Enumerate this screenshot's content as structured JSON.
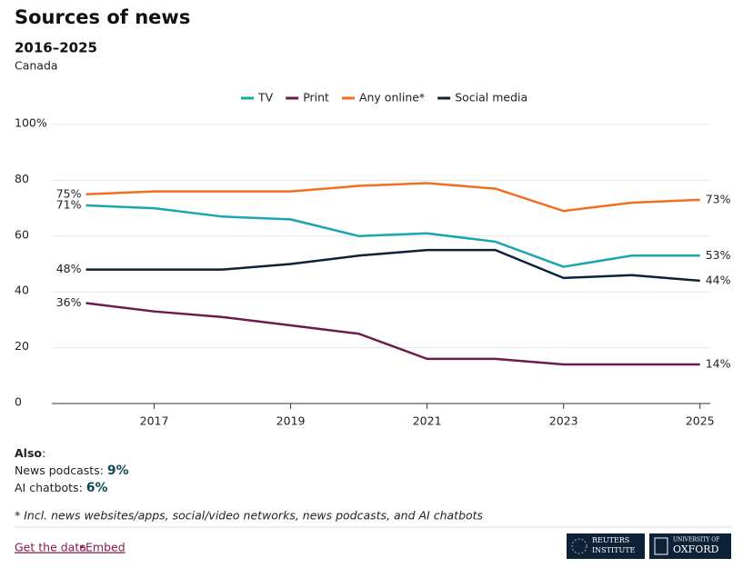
{
  "chart_data": {
    "type": "line",
    "title": "Sources of news",
    "subtitle": "2016–2025",
    "region": "Canada",
    "x": [
      2016,
      2017,
      2018,
      2019,
      2020,
      2021,
      2022,
      2023,
      2024,
      2025
    ],
    "xlim": [
      2015.5,
      2025.15
    ],
    "xticks": [
      2017,
      2019,
      2021,
      2023,
      2025
    ],
    "ylim": [
      0,
      100
    ],
    "yticks": [
      0,
      20,
      40,
      60,
      80,
      {
        "value": 100,
        "label": "100%"
      }
    ],
    "grid": true,
    "legend": "top",
    "series": [
      {
        "name": "TV",
        "color": "#1aa5b0",
        "values": [
          71,
          70,
          67,
          66,
          60,
          61,
          58,
          49,
          53,
          53
        ],
        "value_labels": [
          "71%",
          null,
          null,
          null,
          null,
          null,
          null,
          null,
          null,
          "53%"
        ]
      },
      {
        "name": "Print",
        "color": "#6e1a4d",
        "values": [
          36,
          33,
          31,
          28,
          25,
          16,
          16,
          14,
          14,
          14
        ],
        "value_labels": [
          "36%",
          null,
          null,
          null,
          null,
          null,
          null,
          null,
          null,
          "14%"
        ]
      },
      {
        "name": "Any online*",
        "color": "#f07020",
        "values": [
          75,
          76,
          76,
          76,
          78,
          79,
          77,
          69,
          72,
          73
        ],
        "value_labels": [
          "75%",
          null,
          null,
          null,
          null,
          null,
          null,
          null,
          null,
          "73%"
        ]
      },
      {
        "name": "Social media",
        "color": "#0d2238",
        "values": [
          48,
          48,
          48,
          50,
          53,
          55,
          55,
          45,
          46,
          44
        ],
        "value_labels": [
          "48%",
          null,
          null,
          null,
          null,
          null,
          null,
          null,
          null,
          "44%"
        ]
      }
    ]
  },
  "also": {
    "heading": "Also",
    "colon": ":",
    "items": [
      {
        "label": "News podcasts: ",
        "value": "9%"
      },
      {
        "label": "AI chatbots: ",
        "value": "6%"
      }
    ]
  },
  "footnote": "* Incl. news websites/apps, social/video networks, news podcasts, and AI chatbots",
  "footer": {
    "data_link": "Get the data",
    "separator": "•",
    "embed_link": "Embed",
    "logo_reuters": [
      "REUTERS",
      "INSTITUTE"
    ],
    "logo_oxford": [
      "UNIVERSITY OF",
      "OXFORD"
    ]
  }
}
